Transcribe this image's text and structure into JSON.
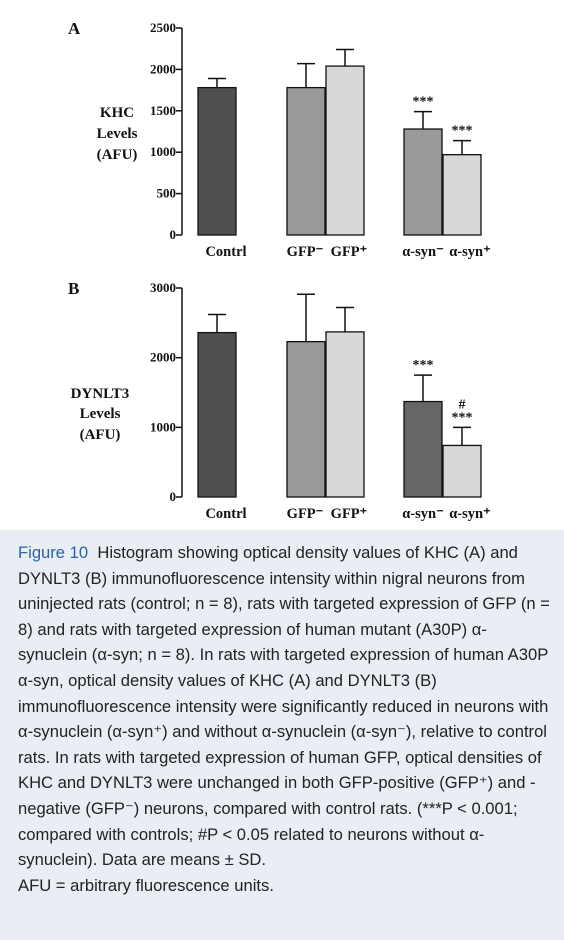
{
  "chart_data": [
    {
      "panel_label": "A",
      "type": "bar",
      "ylabel": [
        "KHC",
        "Levels",
        "(AFU)"
      ],
      "ylim": [
        0,
        2500
      ],
      "yticks": [
        0,
        500,
        1000,
        1500,
        2000,
        2500
      ],
      "ytick_labels": [
        "0",
        "500",
        "1000",
        "1500",
        "2000",
        "2500"
      ],
      "categories": [
        "Contrl",
        "GFP⁻",
        "GFP⁺",
        "α-syn⁻",
        "α-syn⁺"
      ],
      "values": [
        1780,
        1780,
        2040,
        1280,
        970
      ],
      "errors": [
        110,
        290,
        200,
        210,
        170
      ],
      "annotations": [
        "",
        "",
        "",
        "***",
        "***"
      ],
      "bar_colors": [
        "#505050",
        "#999999",
        "#d8d8d8",
        "#999999",
        "#d8d8d8"
      ]
    },
    {
      "panel_label": "B",
      "type": "bar",
      "ylabel": [
        "DYNLT3",
        "Levels",
        "(AFU)"
      ],
      "ylim": [
        0,
        3000
      ],
      "yticks": [
        0,
        1000,
        2000,
        3000
      ],
      "ytick_labels": [
        "0",
        "1000",
        "2000",
        "3000"
      ],
      "categories": [
        "Contrl",
        "GFP⁻",
        "GFP⁺",
        "α-syn⁻",
        "α-syn⁺"
      ],
      "values": [
        2360,
        2230,
        2370,
        1370,
        740
      ],
      "errors": [
        260,
        680,
        350,
        380,
        260
      ],
      "annotations": [
        "",
        "",
        "",
        "***",
        "#\n***"
      ],
      "bar_colors": [
        "#505050",
        "#999999",
        "#d8d8d8",
        "#666666",
        "#d8d8d8"
      ]
    }
  ],
  "caption": {
    "label": "Figure 10",
    "text": "Histogram showing optical density values of KHC (A) and DYNLT3 (B) immunofluorescence intensity within nigral neurons from uninjected rats (control; n = 8), rats with targeted expression of GFP (n = 8) and rats with targeted expression of human mutant (A30P) α-synuclein (α-syn; n = 8). In rats with targeted expression of human A30P α-syn, optical density values of KHC (A) and DYNLT3 (B) immunofluorescence intensity were significantly reduced in neurons with α-synuclein (α-syn⁺) and without α-synuclein (α-syn⁻), relative to control rats. In rats with targeted expression of human GFP, optical densities of KHC and DYNLT3 were unchanged in both GFP-positive (GFP⁺) and -negative (GFP⁻) neurons, compared with control rats. (***P < 0.001; compared with controls; #P < 0.05 related to neurons without α-synuclein). Data are means ± SD.",
    "footnote": "AFU = arbitrary fluorescence units."
  },
  "colors": {
    "caption_label": "#2e63a8",
    "background": "#e8eef4"
  }
}
